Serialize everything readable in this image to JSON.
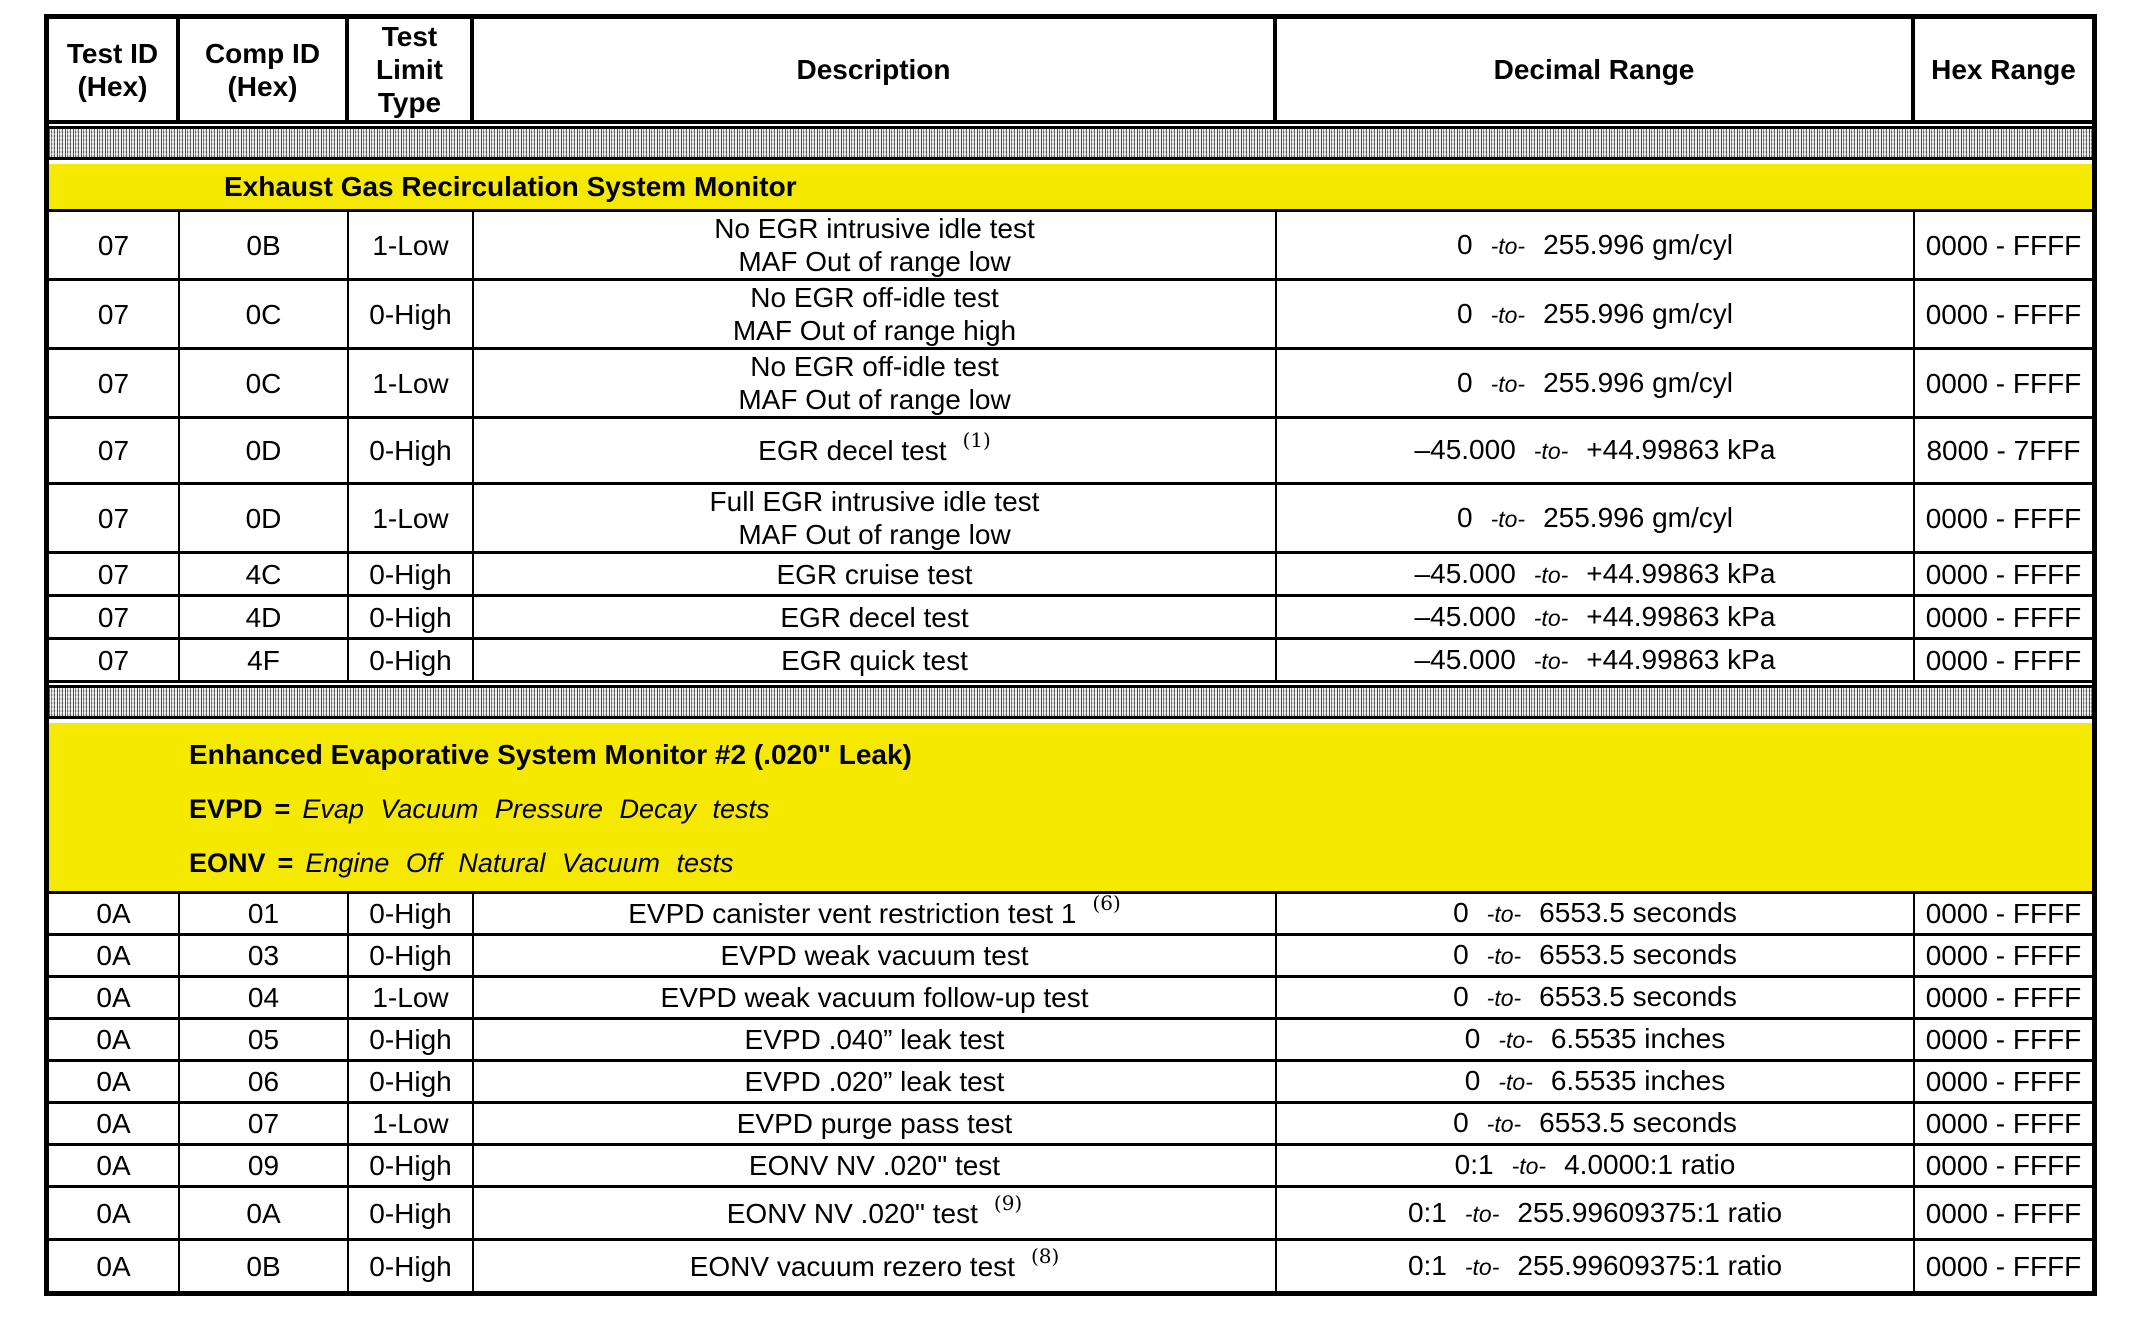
{
  "labels": {
    "to_separator": "-to-",
    "equals": "="
  },
  "colors": {
    "section_header_bg": "#F6E900",
    "table_border": "#000000"
  },
  "header": {
    "columns": [
      {
        "id": "test_id",
        "lines": [
          "Test ID",
          "(Hex)"
        ]
      },
      {
        "id": "comp_id",
        "lines": [
          "Comp ID",
          "(Hex)"
        ]
      },
      {
        "id": "limit_type",
        "lines": [
          "Test",
          "Limit",
          "Type"
        ]
      },
      {
        "id": "description",
        "lines": [
          "Description"
        ]
      },
      {
        "id": "decimal",
        "lines": [
          "Decimal Range"
        ]
      },
      {
        "id": "hex",
        "lines": [
          "Hex Range"
        ]
      }
    ]
  },
  "sections": [
    {
      "title": "Exhaust Gas Recirculation System Monitor",
      "legend": [],
      "rows": [
        {
          "test_id": "07",
          "comp_id": "0B",
          "limit": "1-Low",
          "desc_lines": [
            "No EGR intrusive idle test",
            "MAF Out of range low"
          ],
          "sup": "",
          "dec_min": "0",
          "dec_max": "255.996 gm/cyl",
          "hex_range": "0000 - FFFF"
        },
        {
          "test_id": "07",
          "comp_id": "0C",
          "limit": "0-High",
          "desc_lines": [
            "No EGR off-idle test",
            "MAF Out of range high"
          ],
          "sup": "",
          "dec_min": "0",
          "dec_max": "255.996 gm/cyl",
          "hex_range": "0000 - FFFF"
        },
        {
          "test_id": "07",
          "comp_id": "0C",
          "limit": "1-Low",
          "desc_lines": [
            "No EGR off-idle test",
            "MAF Out of range low"
          ],
          "sup": "",
          "dec_min": "0",
          "dec_max": "255.996 gm/cyl",
          "hex_range": "0000 - FFFF"
        },
        {
          "test_id": "07",
          "comp_id": "0D",
          "limit": "0-High",
          "desc_lines": [
            "EGR decel test"
          ],
          "sup": "(1)",
          "dec_min": "–45.000",
          "dec_max": "+44.99863 kPa",
          "hex_range": "8000 - 7FFF"
        },
        {
          "test_id": "07",
          "comp_id": "0D",
          "limit": "1-Low",
          "desc_lines": [
            "Full EGR intrusive idle test",
            "MAF Out of range low"
          ],
          "sup": "",
          "dec_min": "0",
          "dec_max": "255.996 gm/cyl",
          "hex_range": "0000 - FFFF"
        },
        {
          "test_id": "07",
          "comp_id": "4C",
          "limit": "0-High",
          "desc_lines": [
            "EGR cruise test"
          ],
          "sup": "",
          "dec_min": "–45.000",
          "dec_max": "+44.99863 kPa",
          "hex_range": "0000 - FFFF"
        },
        {
          "test_id": "07",
          "comp_id": "4D",
          "limit": "0-High",
          "desc_lines": [
            "EGR decel test"
          ],
          "sup": "",
          "dec_min": "–45.000",
          "dec_max": "+44.99863 kPa",
          "hex_range": "0000 - FFFF"
        },
        {
          "test_id": "07",
          "comp_id": "4F",
          "limit": "0-High",
          "desc_lines": [
            "EGR quick test"
          ],
          "sup": "",
          "dec_min": "–45.000",
          "dec_max": "+44.99863 kPa",
          "hex_range": "0000 - FFFF"
        }
      ]
    },
    {
      "title": "Enhanced Evaporative System Monitor #2 (.020\" Leak)",
      "legend": [
        {
          "abbr": "EVPD",
          "definition": "Evap Vacuum Pressure Decay tests"
        },
        {
          "abbr": "EONV",
          "definition": "Engine Off Natural Vacuum tests"
        }
      ],
      "rows": [
        {
          "test_id": "0A",
          "comp_id": "01",
          "limit": "0-High",
          "desc_lines": [
            "EVPD canister vent restriction test 1"
          ],
          "sup": "(6)",
          "dec_min": "0",
          "dec_max": "6553.5 seconds",
          "hex_range": "0000 - FFFF"
        },
        {
          "test_id": "0A",
          "comp_id": "03",
          "limit": "0-High",
          "desc_lines": [
            "EVPD weak vacuum test"
          ],
          "sup": "",
          "dec_min": "0",
          "dec_max": "6553.5 seconds",
          "hex_range": "0000 - FFFF"
        },
        {
          "test_id": "0A",
          "comp_id": "04",
          "limit": "1-Low",
          "desc_lines": [
            "EVPD weak vacuum follow-up test"
          ],
          "sup": "",
          "dec_min": "0",
          "dec_max": "6553.5 seconds",
          "hex_range": "0000 - FFFF"
        },
        {
          "test_id": "0A",
          "comp_id": "05",
          "limit": "0-High",
          "desc_lines": [
            "EVPD .040” leak test"
          ],
          "sup": "",
          "dec_min": "0",
          "dec_max": "6.5535 inches",
          "hex_range": "0000 - FFFF"
        },
        {
          "test_id": "0A",
          "comp_id": "06",
          "limit": "0-High",
          "desc_lines": [
            "EVPD .020” leak test"
          ],
          "sup": "",
          "dec_min": "0",
          "dec_max": "6.5535 inches",
          "hex_range": "0000 - FFFF"
        },
        {
          "test_id": "0A",
          "comp_id": "07",
          "limit": "1-Low",
          "desc_lines": [
            "EVPD purge pass test"
          ],
          "sup": "",
          "dec_min": "0",
          "dec_max": "6553.5 seconds",
          "hex_range": "0000 - FFFF"
        },
        {
          "test_id": "0A",
          "comp_id": "09",
          "limit": "0-High",
          "desc_lines": [
            "EONV NV .020\" test"
          ],
          "sup": "",
          "dec_min": "0:1",
          "dec_max": "4.0000:1 ratio",
          "hex_range": "0000 - FFFF"
        },
        {
          "test_id": "0A",
          "comp_id": "0A",
          "limit": "0-High",
          "desc_lines": [
            "EONV NV .020\" test"
          ],
          "sup": "(9)",
          "dec_min": "0:1",
          "dec_max": "255.99609375:1 ratio",
          "hex_range": "0000 - FFFF"
        },
        {
          "test_id": "0A",
          "comp_id": "0B",
          "limit": "0-High",
          "desc_lines": [
            "EONV vacuum rezero test"
          ],
          "sup": "(8)",
          "dec_min": "0:1",
          "dec_max": "255.99609375:1 ratio",
          "hex_range": "0000 - FFFF"
        }
      ]
    }
  ]
}
